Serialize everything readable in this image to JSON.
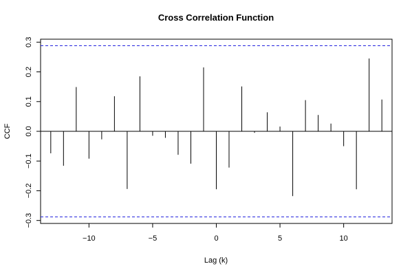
{
  "chart_data": {
    "type": "bar",
    "title": "Cross Correlation Function",
    "xlabel": "Lag (k)",
    "ylabel": "CCF",
    "xlim": [
      -13.8,
      13.8
    ],
    "ylim": [
      -0.31,
      0.31
    ],
    "x_ticks": [
      -10,
      -5,
      0,
      5,
      10
    ],
    "x_tick_labels": [
      "−10",
      "−5",
      "0",
      "5",
      "10"
    ],
    "y_ticks": [
      -0.3,
      -0.2,
      -0.1,
      0.0,
      0.1,
      0.2,
      0.3
    ],
    "y_tick_labels": [
      "−0.3",
      "−0.2",
      "−0.1",
      "0.0",
      "0.1",
      "0.2",
      "0.3"
    ],
    "confidence_band": 0.288,
    "grid": false,
    "colors": {
      "spike": "#000000",
      "confidence": "#2222dd"
    },
    "lags": [
      -13,
      -12,
      -11,
      -10,
      -9,
      -8,
      -7,
      -6,
      -5,
      -4,
      -3,
      -2,
      -1,
      0,
      1,
      2,
      3,
      4,
      5,
      6,
      7,
      8,
      9,
      10,
      11,
      12,
      13
    ],
    "values": [
      -0.074,
      -0.116,
      0.149,
      -0.092,
      -0.027,
      0.118,
      -0.194,
      0.185,
      -0.015,
      -0.022,
      -0.079,
      -0.109,
      0.215,
      -0.195,
      -0.122,
      0.151,
      -0.005,
      0.064,
      0.016,
      -0.218,
      0.105,
      0.055,
      0.026,
      -0.05,
      -0.195,
      0.245,
      0.107
    ]
  }
}
